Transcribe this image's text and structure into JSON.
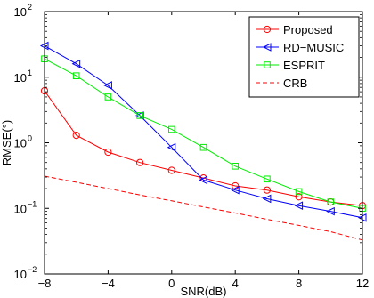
{
  "chart_data": {
    "type": "line",
    "title": "",
    "xlabel": "SNR(dB)",
    "ylabel": "RMSE(°)",
    "xlim": [
      -8,
      12
    ],
    "ylim": [
      0.01,
      100
    ],
    "yscale": "log",
    "grid": false,
    "legend_position": "top-right",
    "x_ticks": [
      -8,
      -4,
      0,
      4,
      8,
      12
    ],
    "x_tick_labels": [
      "−8",
      "−4",
      "0",
      "4",
      "8",
      "12"
    ],
    "y_ticks": [
      0.01,
      0.1,
      1,
      10,
      100
    ],
    "y_tick_labels": [
      {
        "base": "10",
        "exp": "−2"
      },
      {
        "base": "10",
        "exp": "−1"
      },
      {
        "base": "10",
        "exp": "0"
      },
      {
        "base": "10",
        "exp": "1"
      },
      {
        "base": "10",
        "exp": "2"
      }
    ],
    "x": [
      -8,
      -6,
      -4,
      -2,
      0,
      2,
      4,
      6,
      8,
      10,
      12
    ],
    "series": [
      {
        "name": "Proposed",
        "color": "#ff0000",
        "marker": "circle",
        "line_style": "solid",
        "values": [
          6.2,
          1.3,
          0.72,
          0.5,
          0.38,
          0.29,
          0.22,
          0.19,
          0.15,
          0.125,
          0.11
        ]
      },
      {
        "name": "RD−MUSIC",
        "color": "#0000ff",
        "marker": "triangle-left",
        "line_style": "solid",
        "values": [
          30,
          16,
          7.5,
          2.6,
          0.85,
          0.27,
          0.19,
          0.14,
          0.11,
          0.09,
          0.072
        ]
      },
      {
        "name": "ESPRIT",
        "color": "#00ee00",
        "marker": "square",
        "line_style": "solid",
        "values": [
          19,
          10.5,
          5.0,
          2.6,
          1.6,
          0.85,
          0.44,
          0.28,
          0.18,
          0.125,
          0.1
        ]
      },
      {
        "name": "CRB",
        "color": "#ff0000",
        "marker": "none",
        "line_style": "dashed",
        "values": [
          0.31,
          0.25,
          0.2,
          0.16,
          0.13,
          0.105,
          0.085,
          0.068,
          0.055,
          0.044,
          0.033
        ]
      }
    ]
  }
}
